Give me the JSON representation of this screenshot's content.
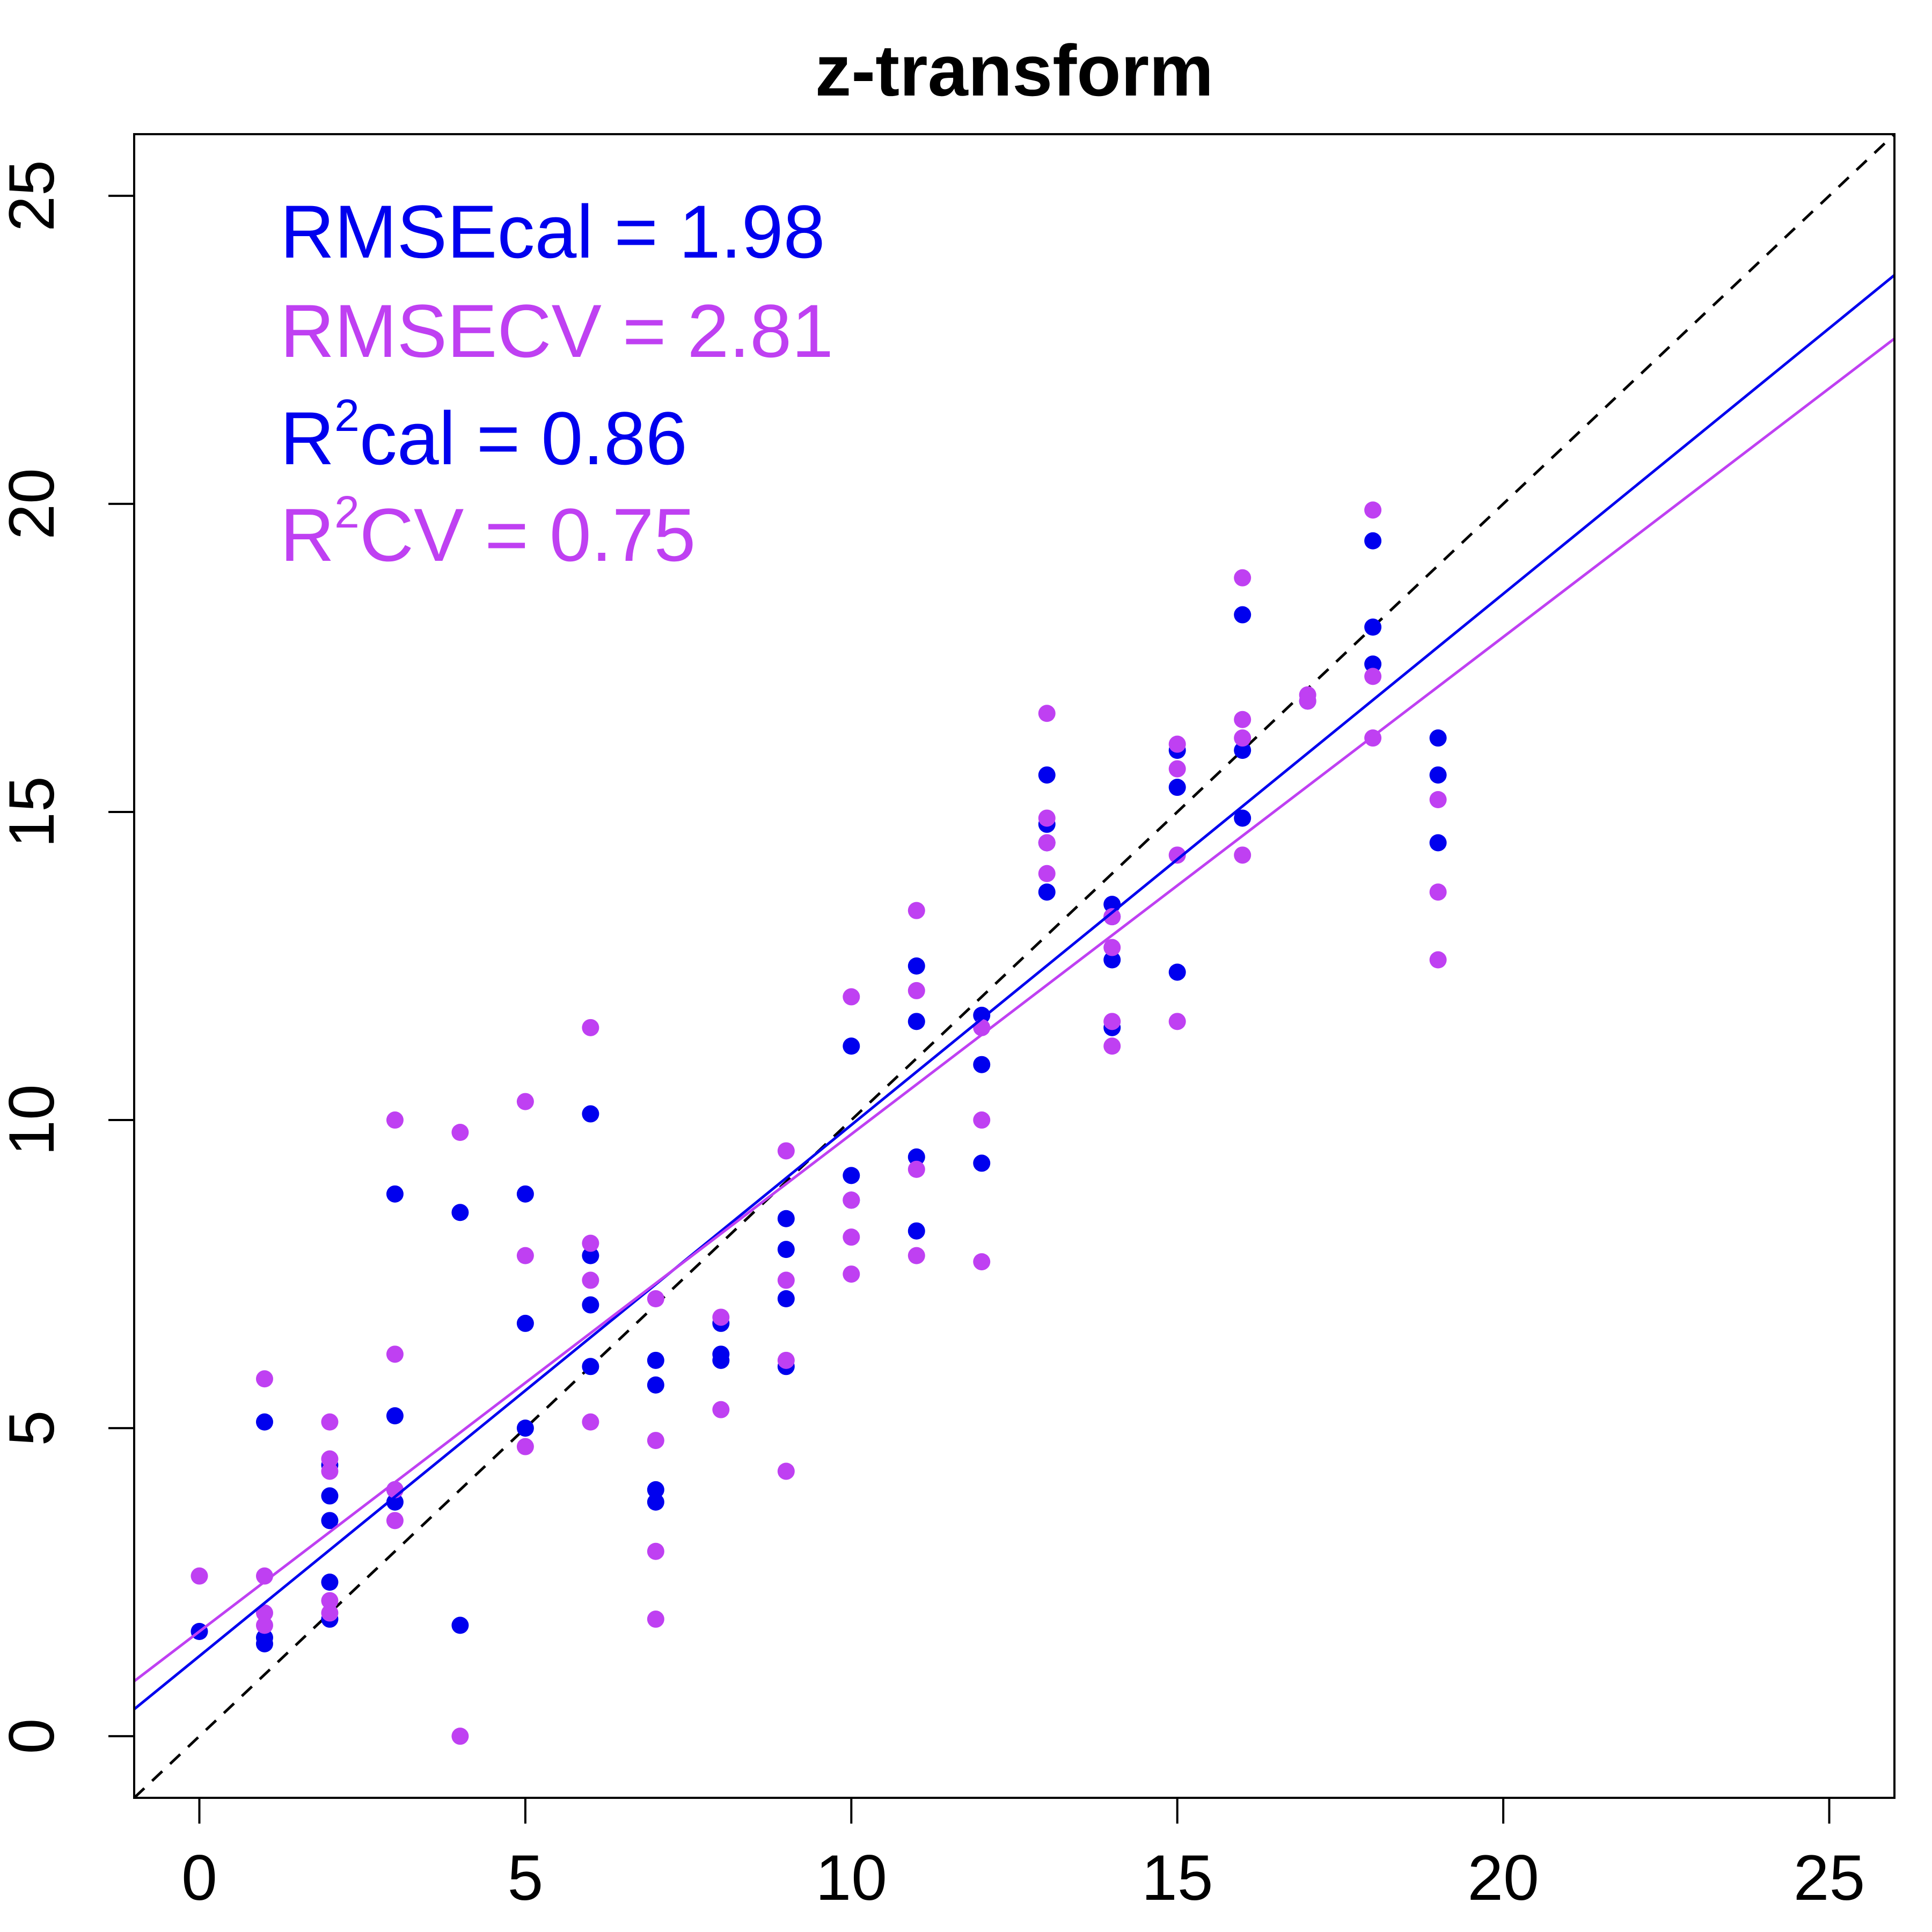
{
  "chart_data": {
    "type": "scatter",
    "title": "z-transform",
    "xlabel": "",
    "ylabel": "",
    "xlim": [
      -1,
      26
    ],
    "ylim": [
      -1,
      26
    ],
    "x_ticks": [
      0,
      5,
      10,
      15,
      20,
      25
    ],
    "y_ticks": [
      0,
      5,
      10,
      15,
      20,
      25
    ],
    "grid": false,
    "legend": "none",
    "reference_line": {
      "style": "dashed",
      "color": "#000000",
      "intercept": 0,
      "slope": 1
    },
    "series": [
      {
        "color": "#0000ee",
        "fit": {
          "intercept": 1.3,
          "slope": 0.862
        },
        "points": [
          [
            0,
            1.7
          ],
          [
            1,
            5.1
          ],
          [
            1,
            1.6
          ],
          [
            1,
            1.5
          ],
          [
            2,
            4.4
          ],
          [
            2,
            3.9
          ],
          [
            2,
            3.5
          ],
          [
            2,
            2.5
          ],
          [
            2,
            1.9
          ],
          [
            3,
            8.8
          ],
          [
            3,
            5.2
          ],
          [
            3,
            4.0
          ],
          [
            3,
            3.8
          ],
          [
            4,
            8.5
          ],
          [
            4,
            1.8
          ],
          [
            5,
            8.8
          ],
          [
            5,
            6.7
          ],
          [
            5,
            5.0
          ],
          [
            6,
            10.1
          ],
          [
            6,
            7.8
          ],
          [
            6,
            7.0
          ],
          [
            6,
            6.0
          ],
          [
            7,
            6.1
          ],
          [
            7,
            5.7
          ],
          [
            7,
            4.0
          ],
          [
            7,
            3.8
          ],
          [
            8,
            6.7
          ],
          [
            8,
            6.2
          ],
          [
            8,
            6.1
          ],
          [
            9,
            8.4
          ],
          [
            9,
            7.9
          ],
          [
            9,
            7.1
          ],
          [
            9,
            6.0
          ],
          [
            10,
            11.2
          ],
          [
            10,
            9.1
          ],
          [
            10,
            8.7
          ],
          [
            11,
            12.5
          ],
          [
            11,
            11.6
          ],
          [
            11,
            9.4
          ],
          [
            11,
            8.2
          ],
          [
            12,
            11.7
          ],
          [
            12,
            10.9
          ],
          [
            12,
            9.3
          ],
          [
            13,
            15.6
          ],
          [
            13,
            14.8
          ],
          [
            13,
            14.5
          ],
          [
            13,
            13.7
          ],
          [
            14,
            13.5
          ],
          [
            14,
            13.3
          ],
          [
            14,
            12.6
          ],
          [
            14,
            11.5
          ],
          [
            15,
            16.0
          ],
          [
            15,
            15.4
          ],
          [
            15,
            12.4
          ],
          [
            16,
            18.2
          ],
          [
            16,
            16.0
          ],
          [
            16,
            14.9
          ],
          [
            17,
            16.8
          ],
          [
            18,
            19.4
          ],
          [
            18,
            18.0
          ],
          [
            18,
            17.4
          ],
          [
            19,
            16.2
          ],
          [
            19,
            15.6
          ],
          [
            19,
            14.5
          ]
        ]
      },
      {
        "color": "#bf40f2",
        "fit": {
          "intercept": 1.7,
          "slope": 0.807
        },
        "points": [
          [
            0,
            2.6
          ],
          [
            1,
            5.8
          ],
          [
            1,
            2.6
          ],
          [
            1,
            2.0
          ],
          [
            1,
            1.8
          ],
          [
            2,
            5.1
          ],
          [
            2,
            4.5
          ],
          [
            2,
            4.3
          ],
          [
            2,
            2.2
          ],
          [
            2,
            2.0
          ],
          [
            3,
            10.0
          ],
          [
            3,
            6.2
          ],
          [
            3,
            4.0
          ],
          [
            3,
            3.5
          ],
          [
            4,
            9.8
          ],
          [
            4,
            0.0
          ],
          [
            5,
            10.3
          ],
          [
            5,
            7.8
          ],
          [
            5,
            4.7
          ],
          [
            6,
            11.5
          ],
          [
            6,
            8.0
          ],
          [
            6,
            7.4
          ],
          [
            6,
            5.1
          ],
          [
            7,
            7.1
          ],
          [
            7,
            4.8
          ],
          [
            7,
            3.0
          ],
          [
            7,
            1.9
          ],
          [
            8,
            6.8
          ],
          [
            8,
            5.3
          ],
          [
            9,
            9.5
          ],
          [
            9,
            7.4
          ],
          [
            9,
            6.1
          ],
          [
            9,
            4.3
          ],
          [
            10,
            12.0
          ],
          [
            10,
            8.7
          ],
          [
            10,
            8.1
          ],
          [
            10,
            7.5
          ],
          [
            11,
            13.4
          ],
          [
            11,
            12.1
          ],
          [
            11,
            9.2
          ],
          [
            11,
            7.8
          ],
          [
            12,
            11.5
          ],
          [
            12,
            10.0
          ],
          [
            12,
            7.7
          ],
          [
            13,
            16.6
          ],
          [
            13,
            14.9
          ],
          [
            13,
            14.5
          ],
          [
            13,
            14.0
          ],
          [
            14,
            13.3
          ],
          [
            14,
            12.8
          ],
          [
            14,
            11.6
          ],
          [
            14,
            11.2
          ],
          [
            15,
            16.1
          ],
          [
            15,
            15.7
          ],
          [
            15,
            14.3
          ],
          [
            15,
            11.6
          ],
          [
            16,
            18.8
          ],
          [
            16,
            16.5
          ],
          [
            16,
            16.2
          ],
          [
            16,
            14.3
          ],
          [
            17,
            16.9
          ],
          [
            17,
            16.8
          ],
          [
            18,
            19.9
          ],
          [
            18,
            17.2
          ],
          [
            18,
            16.2
          ],
          [
            19,
            15.2
          ],
          [
            19,
            13.7
          ],
          [
            19,
            12.6
          ]
        ]
      }
    ],
    "annotations": [
      {
        "label": "RMSEcal = 1.98",
        "color": "#0000ee"
      },
      {
        "label": "RMSECV = 2.81",
        "color": "#bf40f2"
      },
      {
        "prefix": "R",
        "sup": "2",
        "suffix": "cal = 0.86",
        "color": "#0000ee"
      },
      {
        "prefix": "R",
        "sup": "2",
        "suffix": "CV = 0.75",
        "color": "#bf40f2"
      }
    ]
  }
}
